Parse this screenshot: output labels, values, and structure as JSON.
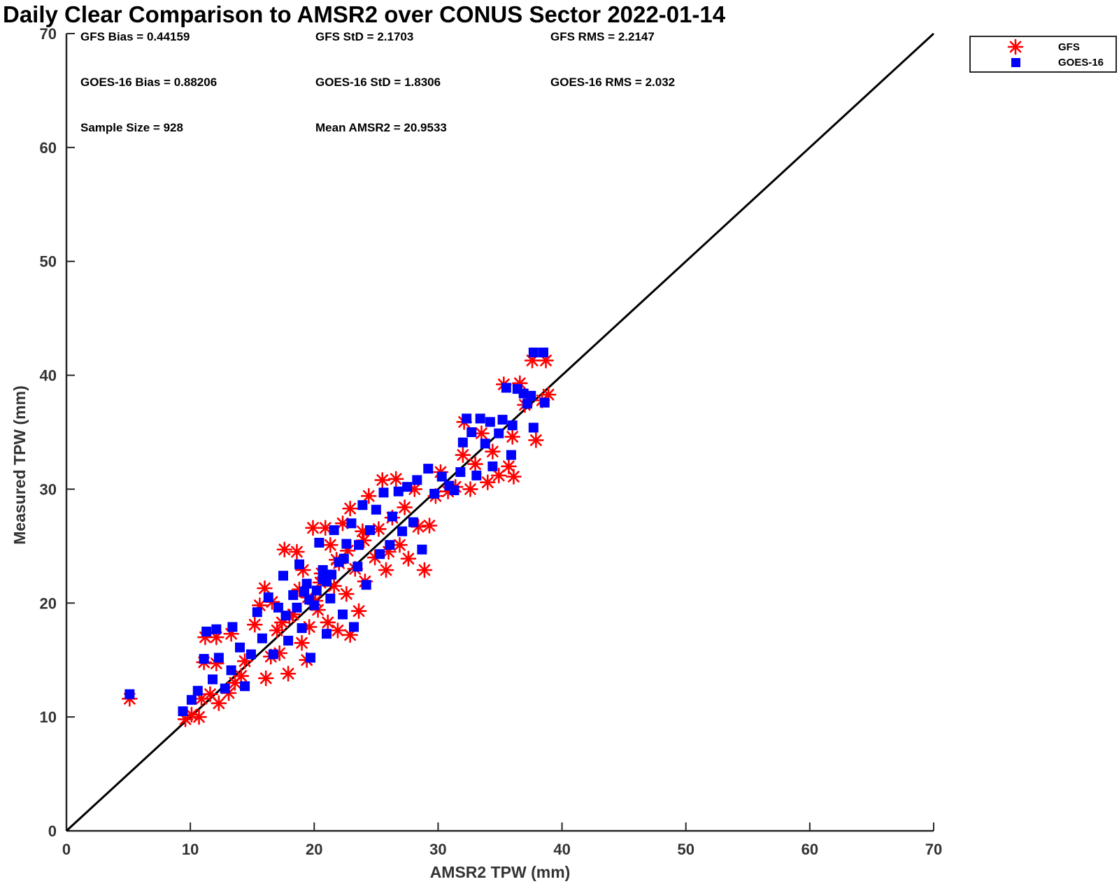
{
  "chart_data": {
    "type": "scatter",
    "title": "Daily Clear Comparison to AMSR2 over CONUS Sector 2022-01-14",
    "xlabel": "AMSR2 TPW (mm)",
    "ylabel": "Measured TPW (mm)",
    "xlim": [
      0,
      70
    ],
    "ylim": [
      0,
      70
    ],
    "xticks": [
      "0",
      "10",
      "20",
      "30",
      "40",
      "50",
      "60",
      "70"
    ],
    "yticks": [
      "0",
      "10",
      "20",
      "30",
      "40",
      "50",
      "60",
      "70"
    ],
    "reference_line": "y = x",
    "legend_position": "outside-top-right",
    "annotations": {
      "gfs_bias": "GFS Bias = 0.44159",
      "gfs_std": "GFS StD = 2.1703",
      "gfs_rms": "GFS RMS = 2.2147",
      "goes_bias": "GOES-16 Bias = 0.88206",
      "goes_std": "GOES-16 StD = 1.8306",
      "goes_rms": "GOES-16 RMS = 2.032",
      "sample_size": "Sample Size = 928",
      "mean_amsr2": "Mean AMSR2 = 20.9533"
    },
    "series": [
      {
        "name": "GFS",
        "marker": "asterisk",
        "color": "#ff0000",
        "points": [
          [
            5.1,
            11.6
          ],
          [
            9.6,
            9.8
          ],
          [
            10.1,
            10.2
          ],
          [
            10.7,
            10.0
          ],
          [
            10.9,
            11.6
          ],
          [
            11.1,
            14.8
          ],
          [
            11.2,
            17.0
          ],
          [
            11.6,
            12.0
          ],
          [
            12.1,
            17.0
          ],
          [
            12.1,
            14.7
          ],
          [
            12.3,
            11.2
          ],
          [
            13.1,
            12.1
          ],
          [
            13.6,
            13.0
          ],
          [
            13.3,
            17.3
          ],
          [
            14.1,
            13.6
          ],
          [
            14.4,
            14.9
          ],
          [
            15.2,
            18.1
          ],
          [
            15.6,
            19.8
          ],
          [
            16.0,
            21.3
          ],
          [
            16.1,
            13.4
          ],
          [
            16.5,
            15.3
          ],
          [
            16.6,
            20.1
          ],
          [
            17.0,
            17.6
          ],
          [
            17.2,
            15.6
          ],
          [
            17.6,
            24.7
          ],
          [
            17.9,
            13.8
          ],
          [
            18.0,
            18.8
          ],
          [
            18.6,
            24.5
          ],
          [
            18.8,
            21.2
          ],
          [
            19.0,
            16.5
          ],
          [
            19.1,
            22.9
          ],
          [
            19.4,
            15.0
          ],
          [
            19.6,
            17.9
          ],
          [
            19.9,
            26.6
          ],
          [
            20.1,
            20.2
          ],
          [
            20.3,
            19.4
          ],
          [
            20.6,
            22.6
          ],
          [
            20.9,
            26.6
          ],
          [
            21.1,
            18.3
          ],
          [
            21.3,
            25.1
          ],
          [
            21.6,
            21.5
          ],
          [
            21.9,
            17.6
          ],
          [
            22.0,
            23.5
          ],
          [
            22.3,
            27.0
          ],
          [
            22.6,
            20.8
          ],
          [
            22.9,
            17.2
          ],
          [
            22.9,
            28.3
          ],
          [
            23.3,
            23.0
          ],
          [
            23.6,
            19.3
          ],
          [
            24.0,
            25.5
          ],
          [
            24.1,
            21.9
          ],
          [
            24.4,
            29.4
          ],
          [
            24.9,
            24.0
          ],
          [
            25.2,
            26.5
          ],
          [
            25.5,
            30.8
          ],
          [
            25.8,
            22.9
          ],
          [
            26.0,
            24.5
          ],
          [
            26.3,
            27.5
          ],
          [
            26.6,
            30.9
          ],
          [
            26.9,
            25.1
          ],
          [
            27.3,
            28.4
          ],
          [
            27.6,
            23.9
          ],
          [
            28.1,
            30.0
          ],
          [
            28.4,
            26.7
          ],
          [
            28.9,
            22.9
          ],
          [
            29.3,
            26.8
          ],
          [
            29.8,
            29.4
          ],
          [
            30.2,
            31.5
          ],
          [
            30.8,
            29.8
          ],
          [
            31.4,
            30.2
          ],
          [
            32.0,
            33.0
          ],
          [
            32.1,
            35.9
          ],
          [
            32.6,
            30.0
          ],
          [
            33.0,
            32.2
          ],
          [
            33.5,
            34.9
          ],
          [
            34.0,
            30.6
          ],
          [
            34.4,
            33.3
          ],
          [
            34.9,
            31.2
          ],
          [
            35.3,
            39.2
          ],
          [
            35.7,
            32.0
          ],
          [
            36.0,
            34.6
          ],
          [
            36.1,
            31.1
          ],
          [
            36.6,
            39.3
          ],
          [
            37.0,
            37.4
          ],
          [
            37.6,
            41.3
          ],
          [
            37.9,
            34.3
          ],
          [
            38.4,
            37.8
          ],
          [
            38.7,
            41.3
          ],
          [
            38.9,
            38.3
          ],
          [
            20.5,
            21.8
          ],
          [
            19.5,
            20.5
          ],
          [
            21.8,
            23.8
          ],
          [
            18.3,
            19.0
          ],
          [
            22.7,
            24.6
          ],
          [
            17.4,
            18.3
          ],
          [
            23.9,
            26.3
          ]
        ]
      },
      {
        "name": "GOES-16",
        "marker": "square",
        "color": "#0000ff",
        "points": [
          [
            5.1,
            12.0
          ],
          [
            9.4,
            10.5
          ],
          [
            10.1,
            11.5
          ],
          [
            10.6,
            12.3
          ],
          [
            11.1,
            15.1
          ],
          [
            11.3,
            17.5
          ],
          [
            11.8,
            13.3
          ],
          [
            12.1,
            17.7
          ],
          [
            12.3,
            15.2
          ],
          [
            12.8,
            12.5
          ],
          [
            13.3,
            14.1
          ],
          [
            13.4,
            17.9
          ],
          [
            14.0,
            16.1
          ],
          [
            14.4,
            12.7
          ],
          [
            14.9,
            15.5
          ],
          [
            15.4,
            19.2
          ],
          [
            15.8,
            16.9
          ],
          [
            16.3,
            20.5
          ],
          [
            16.7,
            15.5
          ],
          [
            17.1,
            19.6
          ],
          [
            17.5,
            22.4
          ],
          [
            17.9,
            16.7
          ],
          [
            18.3,
            20.7
          ],
          [
            18.8,
            23.4
          ],
          [
            19.0,
            17.8
          ],
          [
            19.4,
            21.7
          ],
          [
            19.7,
            15.2
          ],
          [
            20.0,
            19.8
          ],
          [
            20.4,
            25.3
          ],
          [
            20.7,
            22.1
          ],
          [
            21.0,
            17.3
          ],
          [
            21.3,
            20.4
          ],
          [
            21.6,
            26.4
          ],
          [
            22.0,
            23.6
          ],
          [
            22.3,
            19.0
          ],
          [
            22.6,
            25.2
          ],
          [
            23.0,
            27.0
          ],
          [
            23.2,
            17.9
          ],
          [
            23.5,
            23.2
          ],
          [
            23.9,
            28.6
          ],
          [
            24.2,
            21.6
          ],
          [
            24.5,
            26.4
          ],
          [
            25.0,
            28.2
          ],
          [
            25.3,
            24.3
          ],
          [
            25.6,
            29.7
          ],
          [
            26.1,
            25.1
          ],
          [
            26.3,
            27.6
          ],
          [
            26.8,
            29.8
          ],
          [
            27.1,
            26.3
          ],
          [
            27.5,
            30.2
          ],
          [
            28.0,
            27.1
          ],
          [
            28.3,
            30.8
          ],
          [
            28.7,
            24.7
          ],
          [
            29.2,
            31.8
          ],
          [
            29.7,
            29.6
          ],
          [
            30.3,
            31.1
          ],
          [
            30.9,
            30.3
          ],
          [
            31.3,
            29.9
          ],
          [
            31.8,
            31.5
          ],
          [
            32.0,
            34.1
          ],
          [
            32.3,
            36.2
          ],
          [
            32.7,
            35.0
          ],
          [
            33.1,
            31.2
          ],
          [
            33.4,
            36.2
          ],
          [
            33.8,
            34.0
          ],
          [
            34.2,
            35.9
          ],
          [
            34.4,
            32.0
          ],
          [
            34.9,
            34.9
          ],
          [
            35.2,
            36.1
          ],
          [
            35.5,
            38.9
          ],
          [
            35.9,
            33.0
          ],
          [
            36.0,
            35.6
          ],
          [
            36.4,
            38.8
          ],
          [
            36.9,
            38.4
          ],
          [
            37.2,
            37.5
          ],
          [
            37.5,
            38.2
          ],
          [
            37.7,
            42.0
          ],
          [
            37.7,
            35.4
          ],
          [
            38.5,
            42.0
          ],
          [
            38.6,
            37.6
          ],
          [
            20.2,
            21.1
          ],
          [
            19.6,
            20.3
          ],
          [
            21.4,
            22.5
          ],
          [
            18.6,
            19.6
          ],
          [
            22.4,
            23.9
          ],
          [
            17.7,
            18.9
          ],
          [
            23.6,
            25.1
          ],
          [
            21.0,
            21.9
          ],
          [
            19.2,
            21.0
          ],
          [
            20.7,
            22.9
          ]
        ]
      }
    ]
  }
}
